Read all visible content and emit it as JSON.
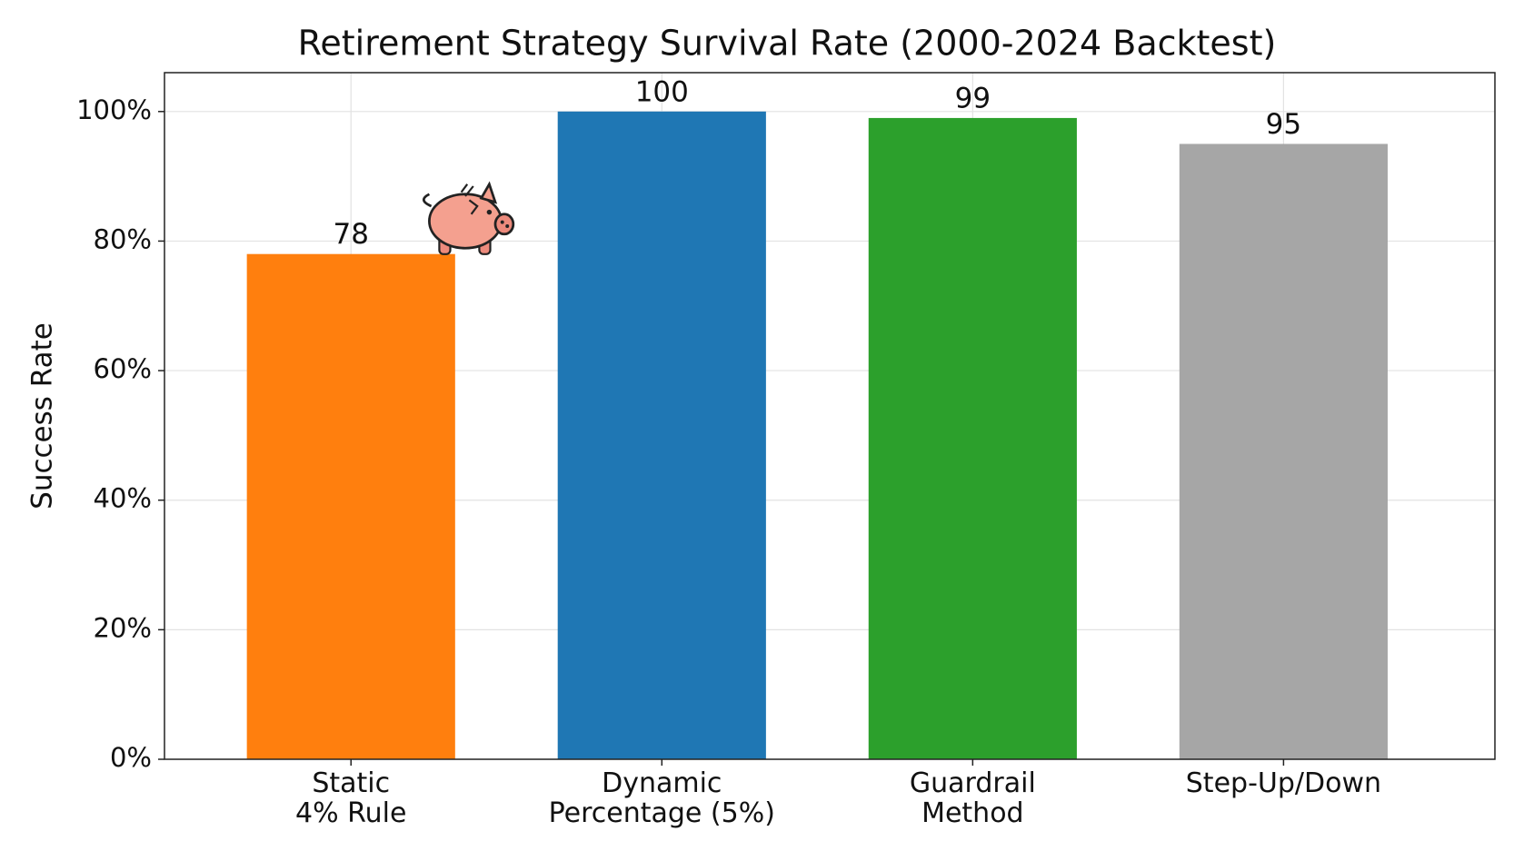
{
  "chart_data": {
    "type": "bar",
    "title": "Retirement Strategy Survival Rate (2000-2024 Backtest)",
    "ylabel": "Success Rate",
    "categories": [
      "Static\n4% Rule",
      "Dynamic\nPercentage (5%)",
      "Guardrail\nMethod",
      "Step-Up/Down"
    ],
    "values": [
      78,
      100,
      99,
      95
    ],
    "colors": [
      "#ff7f0e",
      "#1f77b4",
      "#2ca02c",
      "#a6a6a6"
    ],
    "ylim": [
      0,
      106
    ],
    "yticks": [
      {
        "value": 0,
        "label": "0%"
      },
      {
        "value": 20,
        "label": "20%"
      },
      {
        "value": 40,
        "label": "40%"
      },
      {
        "value": 60,
        "label": "60%"
      },
      {
        "value": 80,
        "label": "80%"
      },
      {
        "value": 100,
        "label": "100%"
      }
    ],
    "grid": true
  }
}
